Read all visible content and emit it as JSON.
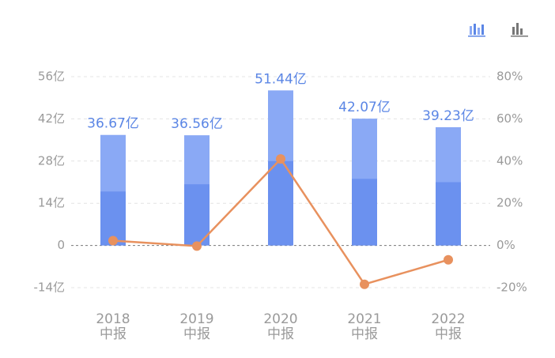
{
  "chart_data": {
    "type": "bar-line",
    "categories": [
      [
        "2018",
        "中报"
      ],
      [
        "2019",
        "中报"
      ],
      [
        "2020",
        "中报"
      ],
      [
        "2021",
        "中报"
      ],
      [
        "2022",
        "中报"
      ]
    ],
    "values": [
      36.67,
      36.56,
      51.44,
      42.07,
      39.23
    ],
    "value_labels": [
      "36.67亿",
      "36.56亿",
      "51.44亿",
      "42.07亿",
      "39.23亿"
    ],
    "color": "#8aa9f5",
    "inner_values": [
      17.9,
      20.3,
      28,
      22.1,
      21
    ],
    "inner_color": "#6b91ef",
    "line": {
      "axis": "y2",
      "color": "#e8915e",
      "values": [
        2.3,
        -0.3,
        41,
        -18.4,
        -6.8
      ]
    },
    "ylim": [
      -14,
      56
    ],
    "yticks": [
      {
        "value": -14,
        "label": "-14亿"
      },
      0,
      {
        "value": 14,
        "label": "14亿"
      },
      {
        "value": 28,
        "label": "28亿"
      },
      {
        "value": 42,
        "label": "42亿"
      },
      {
        "value": 56,
        "label": "56亿"
      }
    ],
    "y2lim": [
      -20,
      80
    ],
    "y2ticks": [
      {
        "value": -20,
        "label": "-20%"
      },
      {
        "value": 0,
        "label": "0%"
      },
      {
        "value": 20,
        "label": "20%"
      },
      {
        "value": 40,
        "label": "40%"
      },
      {
        "value": 60,
        "label": "60%"
      },
      {
        "value": 80,
        "label": "80%"
      }
    ],
    "grid": true
  }
}
